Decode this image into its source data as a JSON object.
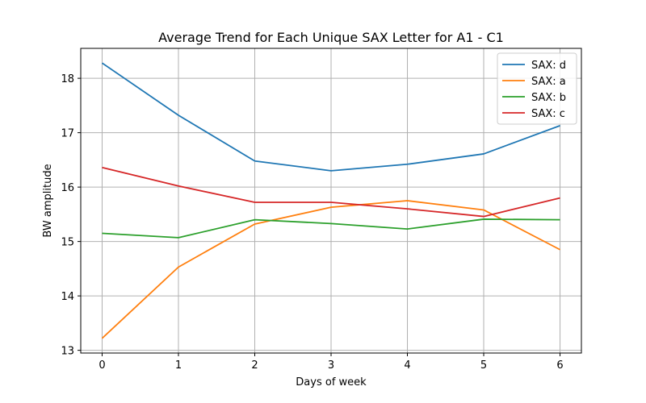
{
  "chart_data": {
    "type": "line",
    "title": "Average Trend for Each Unique SAX Letter for A1 - C1",
    "xlabel": "Days of week",
    "ylabel": "BW amplitude",
    "x": [
      0,
      1,
      2,
      3,
      4,
      5,
      6
    ],
    "xlim": [
      -0.28,
      6.28
    ],
    "ylim": [
      12.95,
      18.55
    ],
    "yticks": [
      13,
      14,
      15,
      16,
      17,
      18
    ],
    "grid": true,
    "legend_position": "top-right",
    "series": [
      {
        "name": "SAX: d",
        "color": "#1f77b4",
        "values": [
          18.28,
          17.32,
          16.48,
          16.3,
          16.42,
          16.61,
          17.13
        ]
      },
      {
        "name": "SAX: a",
        "color": "#ff7f0e",
        "values": [
          13.22,
          14.53,
          15.32,
          15.63,
          15.75,
          15.58,
          14.85
        ]
      },
      {
        "name": "SAX: b",
        "color": "#2ca02c",
        "values": [
          15.15,
          15.07,
          15.4,
          15.33,
          15.23,
          15.41,
          15.4
        ]
      },
      {
        "name": "SAX: c",
        "color": "#d62728",
        "values": [
          16.36,
          16.02,
          15.72,
          15.72,
          15.6,
          15.46,
          15.8
        ]
      }
    ]
  }
}
